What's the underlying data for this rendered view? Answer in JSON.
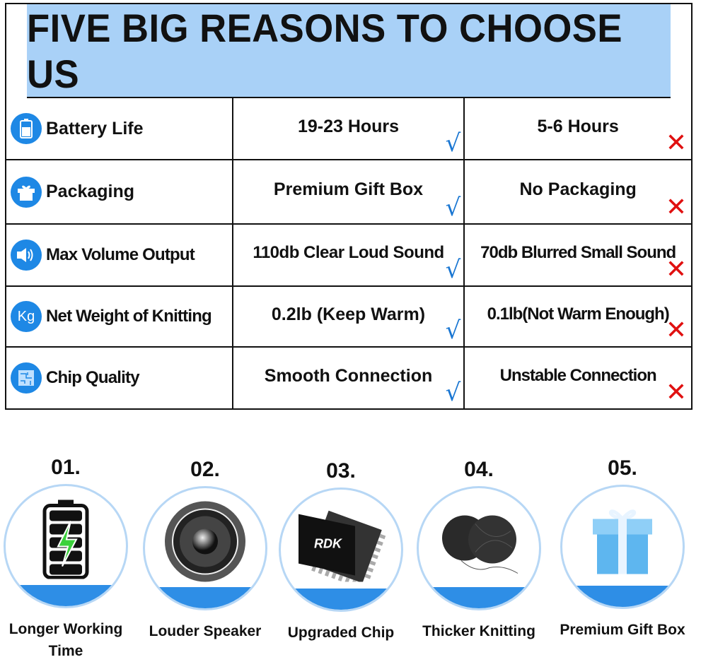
{
  "title": "FIVE BIG REASONS TO CHOOSE US",
  "colors": {
    "header_bg": "#a9d1f7",
    "accent": "#1e88e5",
    "check": "#1976d2",
    "cross": "#e01010"
  },
  "rows": [
    {
      "icon": "battery-icon",
      "feature": "Battery Life",
      "ours": "19-23 Hours",
      "theirs": "5-6 Hours"
    },
    {
      "icon": "gift-icon",
      "feature": "Packaging",
      "ours": "Premium Gift Box",
      "theirs": "No Packaging"
    },
    {
      "icon": "speaker-icon",
      "feature": "Max Volume Output",
      "ours": "110db Clear Loud Sound",
      "theirs": "70db Blurred Small Sound"
    },
    {
      "icon": "kg-icon",
      "feature": "Net Weight of Knitting",
      "ours": "0.2lb (Keep Warm)",
      "theirs": "0.1lb(Not Warm Enough)"
    },
    {
      "icon": "chip-icon",
      "feature": "Chip Quality",
      "ours": "Smooth Connection",
      "theirs": "Unstable Connection"
    }
  ],
  "kg_text": "Kg",
  "chip_brand": "RDK",
  "features": [
    {
      "num": "01.",
      "label": "Longer Working Time",
      "icon": "battery-charging-icon"
    },
    {
      "num": "02.",
      "label": "Louder Speaker",
      "icon": "speaker-icon"
    },
    {
      "num": "03.",
      "label": "Upgraded Chip",
      "icon": "chip-icon"
    },
    {
      "num": "04.",
      "label": "Thicker Knitting",
      "icon": "yarn-icon"
    },
    {
      "num": "05.",
      "label": "Premium Gift Box",
      "icon": "gift-box-icon"
    }
  ]
}
